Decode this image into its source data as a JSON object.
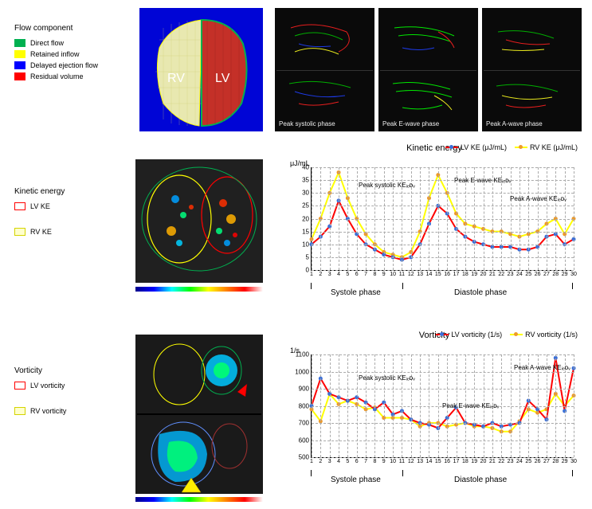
{
  "legends": {
    "flow_component": {
      "title": "Flow component",
      "items": [
        {
          "label": "Direct flow",
          "color": "#00b050"
        },
        {
          "label": "Retained inflow",
          "color": "#ffff00"
        },
        {
          "label": "Delayed ejection flow",
          "color": "#0000ff"
        },
        {
          "label": "Residual volume",
          "color": "#ff0000"
        }
      ]
    },
    "kinetic_energy": {
      "title": "Kinetic energy",
      "items": [
        {
          "label": "LV KE",
          "color": "#ff0000"
        },
        {
          "label": "RV KE",
          "color": "#ffff00"
        }
      ]
    },
    "vorticity": {
      "title": "Vorticity",
      "items": [
        {
          "label": "LV vorticity",
          "color": "#ff0000"
        },
        {
          "label": "RV vorticity",
          "color": "#ffff00"
        }
      ]
    }
  },
  "seg_panel": {
    "rv_label": "RV",
    "lv_label": "LV"
  },
  "flow_phases": {
    "p1": "Peak systolic phase",
    "p2": "Peak E-wave phase",
    "p3": "Peak A-wave phase"
  },
  "ke_chart": {
    "title": "Kinetic energy",
    "ylabel": "μJ/mL",
    "legend": [
      {
        "label": "LV KE (μJ/mL)",
        "line_color": "#ff0000",
        "dot_color": "#3a6fd8"
      },
      {
        "label": "RV KE (μJ/mL)",
        "line_color": "#ffff00",
        "dot_color": "#ed9a2a"
      }
    ],
    "annotations": {
      "a1": "Peak systolic KEᵢₑᴅᵥ",
      "a2": "Peak E-wave KEᵢₑᴅᵥ",
      "a3": "Peak A-wave KEᵢₑᴅᵥ"
    },
    "ylim": [
      0,
      40
    ],
    "ytick_step": 5,
    "x": [
      1,
      2,
      3,
      4,
      5,
      6,
      7,
      8,
      9,
      10,
      11,
      12,
      13,
      14,
      15,
      16,
      17,
      18,
      19,
      20,
      21,
      22,
      23,
      24,
      25,
      26,
      27,
      28,
      29,
      30
    ],
    "lv_values": [
      10,
      13,
      17,
      27,
      20,
      14,
      10,
      8,
      6,
      5,
      4,
      5,
      10,
      18,
      25,
      22,
      16,
      13,
      11,
      10,
      9,
      9,
      9,
      8,
      8,
      9,
      13,
      14,
      10,
      12
    ],
    "rv_values": [
      12,
      20,
      30,
      38,
      28,
      20,
      14,
      10,
      7,
      6,
      5,
      7,
      15,
      28,
      37,
      30,
      22,
      18,
      17,
      16,
      15,
      15,
      14,
      13,
      14,
      15,
      18,
      20,
      14,
      20
    ],
    "phase_labels": {
      "systole": "Systole phase",
      "diastole": "Diastole phase"
    },
    "phase_ticks": [
      1,
      11,
      30
    ],
    "background_color": "#ffffff",
    "grid_color": "#bbbbbb",
    "line_width": 2
  },
  "vort_chart": {
    "title": "Vorticity",
    "ylabel": "1/s",
    "legend": [
      {
        "label": "LV vorticity (1/s)",
        "line_color": "#ff0000",
        "dot_color": "#3a6fd8"
      },
      {
        "label": "RV vorticity (1/s)",
        "line_color": "#ffff00",
        "dot_color": "#ed9a2a"
      }
    ],
    "annotations": {
      "a1": "Peak systolic KEᵢₑᴅᵥ",
      "a2": "Peak E-wave KEᵢₑᴅᵥ",
      "a3": "Peak A-wave KEᵢₑᴅᵥ"
    },
    "ylim": [
      500,
      1100
    ],
    "ytick_step": 100,
    "x": [
      1,
      2,
      3,
      4,
      5,
      6,
      7,
      8,
      9,
      10,
      11,
      12,
      13,
      14,
      15,
      16,
      17,
      18,
      19,
      20,
      21,
      22,
      23,
      24,
      25,
      26,
      27,
      28,
      29,
      30
    ],
    "lv_values": [
      800,
      960,
      870,
      850,
      830,
      850,
      820,
      780,
      820,
      750,
      770,
      720,
      700,
      690,
      670,
      730,
      790,
      700,
      690,
      680,
      700,
      680,
      690,
      700,
      830,
      780,
      720,
      1080,
      770,
      1020
    ],
    "rv_values": [
      780,
      710,
      870,
      810,
      830,
      810,
      780,
      790,
      730,
      730,
      730,
      720,
      680,
      700,
      700,
      680,
      690,
      700,
      680,
      680,
      670,
      650,
      650,
      710,
      780,
      760,
      780,
      870,
      800,
      860
    ],
    "phase_labels": {
      "systole": "Systole phase",
      "diastole": "Diastole phase"
    },
    "phase_ticks": [
      1,
      11,
      30
    ],
    "background_color": "#ffffff",
    "grid_color": "#bbbbbb",
    "line_width": 2
  },
  "colors": {
    "lv_line": "#ff0000",
    "rv_line": "#ffff00",
    "lv_dot": "#3a6fd8",
    "rv_dot": "#ed9a2a"
  }
}
